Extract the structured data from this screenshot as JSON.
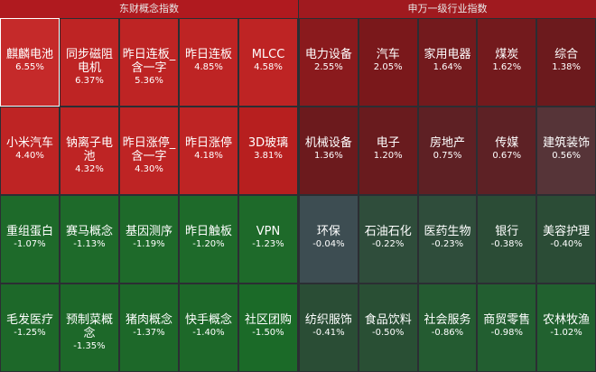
{
  "left": {
    "title": "东财概念指数",
    "tiles": [
      {
        "name": "麒麟电池",
        "value": "6.55%",
        "color": "#c52a2a",
        "selected": true
      },
      {
        "name": "同步磁阻电机",
        "value": "6.37%",
        "color": "#be2424"
      },
      {
        "name": "昨日连板_含一字",
        "value": "5.36%",
        "color": "#be2424"
      },
      {
        "name": "昨日连板",
        "value": "4.85%",
        "color": "#be2424"
      },
      {
        "name": "MLCC",
        "value": "4.58%",
        "color": "#be2424"
      },
      {
        "name": "小米汽车",
        "value": "4.40%",
        "color": "#be2424"
      },
      {
        "name": "钠离子电池",
        "value": "4.32%",
        "color": "#be2424"
      },
      {
        "name": "昨日涨停_含一字",
        "value": "4.30%",
        "color": "#be2424"
      },
      {
        "name": "昨日涨停",
        "value": "4.18%",
        "color": "#be2424"
      },
      {
        "name": "3D玻璃",
        "value": "3.81%",
        "color": "#b71f1f"
      },
      {
        "name": "重组蛋白",
        "value": "-1.07%",
        "color": "#1e6a2a"
      },
      {
        "name": "赛马概念",
        "value": "-1.13%",
        "color": "#1e6a2a"
      },
      {
        "name": "基因测序",
        "value": "-1.19%",
        "color": "#1e6a2a"
      },
      {
        "name": "昨日触板",
        "value": "-1.20%",
        "color": "#1e6a2a"
      },
      {
        "name": "VPN",
        "value": "-1.23%",
        "color": "#1e6a2a"
      },
      {
        "name": "毛发医疗",
        "value": "-1.25%",
        "color": "#1d6829"
      },
      {
        "name": "预制菜概念",
        "value": "-1.35%",
        "color": "#1d6829"
      },
      {
        "name": "猪肉概念",
        "value": "-1.37%",
        "color": "#1d6829"
      },
      {
        "name": "快手概念",
        "value": "-1.40%",
        "color": "#1d6829"
      },
      {
        "name": "社区团购",
        "value": "-1.50%",
        "color": "#1b6a28"
      }
    ]
  },
  "right": {
    "title": "申万一级行业指数",
    "tiles": [
      {
        "name": "电力设备",
        "value": "2.55%",
        "color": "#8a1a1d"
      },
      {
        "name": "汽车",
        "value": "2.05%",
        "color": "#7a181b"
      },
      {
        "name": "家用电器",
        "value": "1.64%",
        "color": "#731a1d"
      },
      {
        "name": "煤炭",
        "value": "1.62%",
        "color": "#731a1d"
      },
      {
        "name": "综合",
        "value": "1.38%",
        "color": "#6c1a1d"
      },
      {
        "name": "机械设备",
        "value": "1.36%",
        "color": "#6c1a1d"
      },
      {
        "name": "电子",
        "value": "1.20%",
        "color": "#691b1e"
      },
      {
        "name": "房地产",
        "value": "0.75%",
        "color": "#5e2024"
      },
      {
        "name": "传媒",
        "value": "0.67%",
        "color": "#5d2125"
      },
      {
        "name": "建筑装饰",
        "value": "0.56%",
        "color": "#563438"
      },
      {
        "name": "环保",
        "value": "-0.04%",
        "color": "#3d4d52"
      },
      {
        "name": "石油石化",
        "value": "-0.22%",
        "color": "#2f4d3b"
      },
      {
        "name": "医药生物",
        "value": "-0.23%",
        "color": "#2f4d3b"
      },
      {
        "name": "银行",
        "value": "-0.38%",
        "color": "#2b4c36"
      },
      {
        "name": "美容护理",
        "value": "-0.40%",
        "color": "#2b4c36"
      },
      {
        "name": "纺织服饰",
        "value": "-0.41%",
        "color": "#2a4d35"
      },
      {
        "name": "食品饮料",
        "value": "-0.50%",
        "color": "#294f34"
      },
      {
        "name": "社会服务",
        "value": "-0.86%",
        "color": "#245b31"
      },
      {
        "name": "商贸零售",
        "value": "-0.98%",
        "color": "#225e30"
      },
      {
        "name": "农林牧渔",
        "value": "-1.02%",
        "color": "#21612f"
      }
    ]
  }
}
